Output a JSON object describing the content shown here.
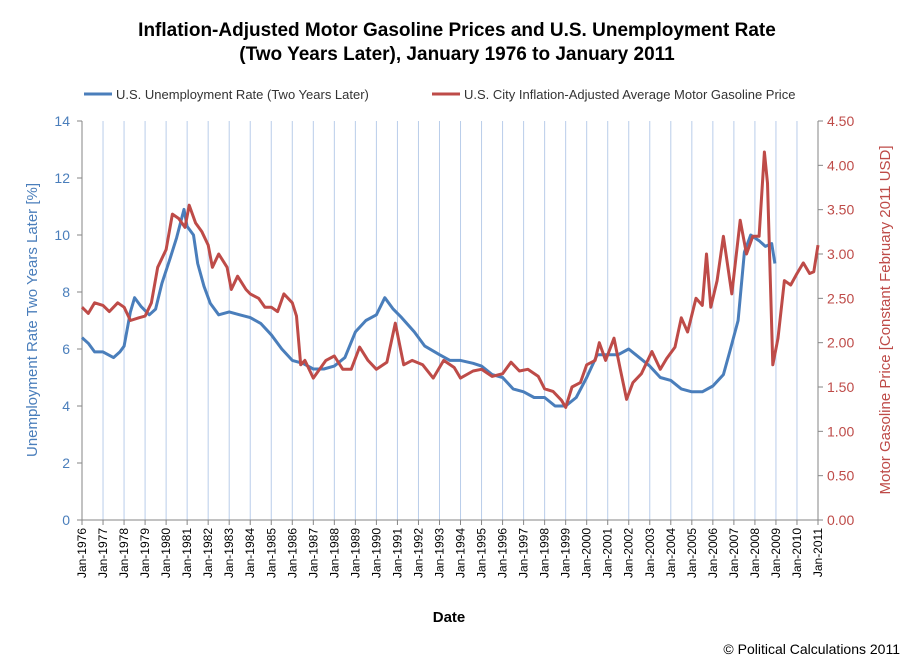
{
  "chart_data": {
    "type": "line",
    "title_line1": "Inflation-Adjusted Motor Gasoline Prices and U.S. Unemployment Rate",
    "title_line2": "(Two Years Later), January 1976 to January 2011",
    "xlabel": "Date",
    "ylabel_left": "Unemployment Rate Two Years Later [%]",
    "ylabel_right": "Motor Gasoline Price [Constant February 2011 USD]",
    "xlim": [
      1976,
      2011
    ],
    "ylim_left": [
      0,
      14
    ],
    "ylim_right": [
      0,
      4.5
    ],
    "yticks_left": [
      "0",
      "2",
      "4",
      "6",
      "8",
      "10",
      "12",
      "14"
    ],
    "yticks_right": [
      "0.00",
      "0.50",
      "1.00",
      "1.50",
      "2.00",
      "2.50",
      "3.00",
      "3.50",
      "4.00",
      "4.50"
    ],
    "xticks": [
      "Jan-1976",
      "Jan-1977",
      "Jan-1978",
      "Jan-1979",
      "Jan-1980",
      "Jan-1981",
      "Jan-1982",
      "Jan-1983",
      "Jan-1984",
      "Jan-1985",
      "Jan-1986",
      "Jan-1987",
      "Jan-1988",
      "Jan-1989",
      "Jan-1990",
      "Jan-1991",
      "Jan-1992",
      "Jan-1993",
      "Jan-1994",
      "Jan-1995",
      "Jan-1996",
      "Jan-1997",
      "Jan-1998",
      "Jan-1999",
      "Jan-2000",
      "Jan-2001",
      "Jan-2002",
      "Jan-2003",
      "Jan-2004",
      "Jan-2005",
      "Jan-2006",
      "Jan-2007",
      "Jan-2008",
      "Jan-2009",
      "Jan-2010",
      "Jan-2011"
    ],
    "grid": "vertical",
    "legend_position": "top",
    "series": [
      {
        "name": "U.S. Unemployment Rate (Two Years Later)",
        "axis": "left",
        "color": "#4a7ebb",
        "points": [
          [
            1976.0,
            6.4
          ],
          [
            1976.3,
            6.2
          ],
          [
            1976.6,
            5.9
          ],
          [
            1977.0,
            5.9
          ],
          [
            1977.5,
            5.7
          ],
          [
            1977.8,
            5.9
          ],
          [
            1978.0,
            6.1
          ],
          [
            1978.3,
            7.3
          ],
          [
            1978.5,
            7.8
          ],
          [
            1978.8,
            7.5
          ],
          [
            1979.2,
            7.2
          ],
          [
            1979.5,
            7.4
          ],
          [
            1979.8,
            8.3
          ],
          [
            1980.2,
            9.2
          ],
          [
            1980.5,
            9.9
          ],
          [
            1980.85,
            10.9
          ],
          [
            1981.0,
            10.3
          ],
          [
            1981.3,
            10.0
          ],
          [
            1981.5,
            9.0
          ],
          [
            1981.8,
            8.2
          ],
          [
            1982.1,
            7.6
          ],
          [
            1982.5,
            7.2
          ],
          [
            1983.0,
            7.3
          ],
          [
            1983.5,
            7.2
          ],
          [
            1984.0,
            7.1
          ],
          [
            1984.5,
            6.9
          ],
          [
            1985.0,
            6.5
          ],
          [
            1985.5,
            6.0
          ],
          [
            1986.0,
            5.6
          ],
          [
            1986.5,
            5.5
          ],
          [
            1987.0,
            5.3
          ],
          [
            1987.5,
            5.3
          ],
          [
            1988.0,
            5.4
          ],
          [
            1988.5,
            5.7
          ],
          [
            1989.0,
            6.6
          ],
          [
            1989.5,
            7.0
          ],
          [
            1990.0,
            7.2
          ],
          [
            1990.4,
            7.8
          ],
          [
            1990.8,
            7.4
          ],
          [
            1991.2,
            7.1
          ],
          [
            1991.8,
            6.6
          ],
          [
            1992.3,
            6.1
          ],
          [
            1993.0,
            5.8
          ],
          [
            1993.5,
            5.6
          ],
          [
            1994.0,
            5.6
          ],
          [
            1994.6,
            5.5
          ],
          [
            1995.0,
            5.4
          ],
          [
            1995.5,
            5.1
          ],
          [
            1996.0,
            5.0
          ],
          [
            1996.5,
            4.6
          ],
          [
            1997.0,
            4.5
          ],
          [
            1997.5,
            4.3
          ],
          [
            1998.0,
            4.3
          ],
          [
            1998.5,
            4.0
          ],
          [
            1999.0,
            4.0
          ],
          [
            1999.5,
            4.3
          ],
          [
            2000.0,
            5.0
          ],
          [
            2000.5,
            5.8
          ],
          [
            2001.0,
            5.8
          ],
          [
            2001.5,
            5.8
          ],
          [
            2002.0,
            6.0
          ],
          [
            2002.5,
            5.7
          ],
          [
            2003.0,
            5.4
          ],
          [
            2003.5,
            5.0
          ],
          [
            2004.0,
            4.9
          ],
          [
            2004.5,
            4.6
          ],
          [
            2005.0,
            4.5
          ],
          [
            2005.5,
            4.5
          ],
          [
            2006.0,
            4.7
          ],
          [
            2006.5,
            5.1
          ],
          [
            2006.8,
            5.9
          ],
          [
            2007.2,
            7.0
          ],
          [
            2007.5,
            9.4
          ],
          [
            2007.8,
            10.0
          ],
          [
            2008.2,
            9.8
          ],
          [
            2008.5,
            9.6
          ],
          [
            2008.8,
            9.7
          ],
          [
            2008.95,
            9.0
          ]
        ]
      },
      {
        "name": "U.S. City Inflation-Adjusted  Average Motor Gasoline Price",
        "axis": "right",
        "color": "#be4b48",
        "points": [
          [
            1976.0,
            2.4
          ],
          [
            1976.3,
            2.33
          ],
          [
            1976.6,
            2.45
          ],
          [
            1977.0,
            2.42
          ],
          [
            1977.3,
            2.35
          ],
          [
            1977.7,
            2.45
          ],
          [
            1978.0,
            2.4
          ],
          [
            1978.3,
            2.25
          ],
          [
            1978.7,
            2.28
          ],
          [
            1979.0,
            2.3
          ],
          [
            1979.3,
            2.45
          ],
          [
            1979.6,
            2.85
          ],
          [
            1980.0,
            3.05
          ],
          [
            1980.3,
            3.45
          ],
          [
            1980.6,
            3.4
          ],
          [
            1980.9,
            3.3
          ],
          [
            1981.1,
            3.55
          ],
          [
            1981.4,
            3.35
          ],
          [
            1981.7,
            3.25
          ],
          [
            1982.0,
            3.1
          ],
          [
            1982.2,
            2.85
          ],
          [
            1982.5,
            3.0
          ],
          [
            1982.9,
            2.85
          ],
          [
            1983.1,
            2.6
          ],
          [
            1983.4,
            2.75
          ],
          [
            1983.8,
            2.6
          ],
          [
            1984.0,
            2.55
          ],
          [
            1984.4,
            2.5
          ],
          [
            1984.7,
            2.4
          ],
          [
            1985.0,
            2.4
          ],
          [
            1985.3,
            2.35
          ],
          [
            1985.6,
            2.55
          ],
          [
            1986.0,
            2.45
          ],
          [
            1986.2,
            2.3
          ],
          [
            1986.4,
            1.75
          ],
          [
            1986.6,
            1.8
          ],
          [
            1987.0,
            1.6
          ],
          [
            1987.3,
            1.7
          ],
          [
            1987.6,
            1.8
          ],
          [
            1988.0,
            1.85
          ],
          [
            1988.4,
            1.7
          ],
          [
            1988.8,
            1.7
          ],
          [
            1989.2,
            1.95
          ],
          [
            1989.6,
            1.8
          ],
          [
            1990.0,
            1.7
          ],
          [
            1990.5,
            1.78
          ],
          [
            1990.9,
            2.22
          ],
          [
            1991.3,
            1.75
          ],
          [
            1991.7,
            1.8
          ],
          [
            1992.2,
            1.75
          ],
          [
            1992.7,
            1.6
          ],
          [
            1993.2,
            1.8
          ],
          [
            1993.7,
            1.72
          ],
          [
            1994.0,
            1.6
          ],
          [
            1994.6,
            1.68
          ],
          [
            1995.0,
            1.7
          ],
          [
            1995.5,
            1.62
          ],
          [
            1996.0,
            1.65
          ],
          [
            1996.4,
            1.78
          ],
          [
            1996.8,
            1.68
          ],
          [
            1997.2,
            1.7
          ],
          [
            1997.7,
            1.62
          ],
          [
            1998.0,
            1.48
          ],
          [
            1998.4,
            1.45
          ],
          [
            1998.8,
            1.35
          ],
          [
            1999.0,
            1.27
          ],
          [
            1999.3,
            1.5
          ],
          [
            1999.7,
            1.55
          ],
          [
            2000.0,
            1.75
          ],
          [
            2000.4,
            1.8
          ],
          [
            2000.6,
            2.0
          ],
          [
            2000.9,
            1.8
          ],
          [
            2001.3,
            2.05
          ],
          [
            2001.6,
            1.7
          ],
          [
            2001.9,
            1.36
          ],
          [
            2002.2,
            1.55
          ],
          [
            2002.6,
            1.65
          ],
          [
            2003.1,
            1.9
          ],
          [
            2003.5,
            1.7
          ],
          [
            2003.8,
            1.82
          ],
          [
            2004.2,
            1.95
          ],
          [
            2004.5,
            2.28
          ],
          [
            2004.8,
            2.12
          ],
          [
            2005.2,
            2.5
          ],
          [
            2005.5,
            2.42
          ],
          [
            2005.7,
            3.0
          ],
          [
            2005.9,
            2.4
          ],
          [
            2006.2,
            2.7
          ],
          [
            2006.5,
            3.2
          ],
          [
            2006.9,
            2.55
          ],
          [
            2007.3,
            3.38
          ],
          [
            2007.6,
            3.0
          ],
          [
            2007.9,
            3.2
          ],
          [
            2008.2,
            3.2
          ],
          [
            2008.45,
            4.15
          ],
          [
            2008.6,
            3.8
          ],
          [
            2008.85,
            1.75
          ],
          [
            2009.1,
            2.05
          ],
          [
            2009.4,
            2.7
          ],
          [
            2009.7,
            2.65
          ],
          [
            2010.0,
            2.78
          ],
          [
            2010.3,
            2.9
          ],
          [
            2010.6,
            2.78
          ],
          [
            2010.8,
            2.8
          ],
          [
            2011.0,
            3.1
          ]
        ]
      }
    ],
    "credit": "© Political Calculations 2011"
  }
}
